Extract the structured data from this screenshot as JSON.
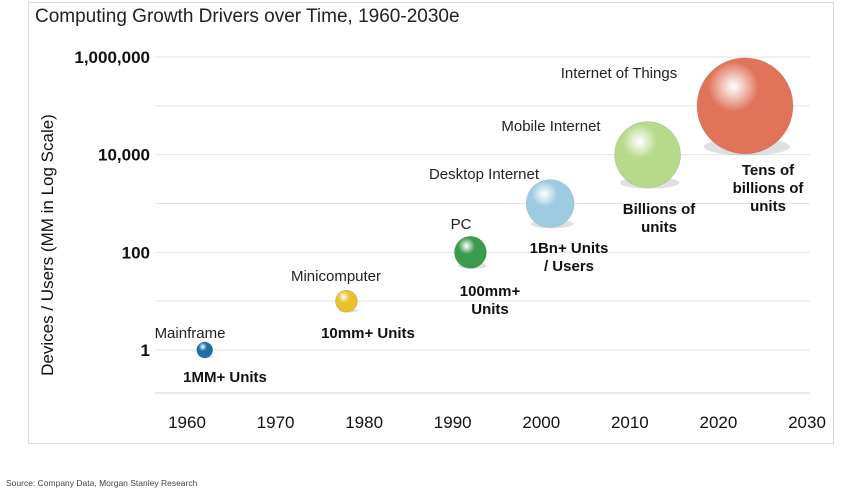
{
  "title": "Computing Growth Drivers over Time, 1960-2030e",
  "source": "Source: Company Data, Morgan Stanley Research",
  "chart_data": {
    "type": "scatter",
    "subtype": "bubble",
    "title": "Computing Growth Drivers over Time, 1960-2030e",
    "ylabel": "Devices / Users (MM in Log Scale)",
    "xlabel": "",
    "y_scale": "log",
    "xlim": [
      1960,
      2030
    ],
    "ylim": [
      0.1,
      1000000
    ],
    "x_ticks": [
      1960,
      1970,
      1980,
      1990,
      2000,
      2010,
      2020,
      2030
    ],
    "y_ticks": [
      {
        "value": 1,
        "label": "1"
      },
      {
        "value": 100,
        "label": "100"
      },
      {
        "value": 10000,
        "label": "10,000"
      },
      {
        "value": 1000000,
        "label": "1,000,000"
      }
    ],
    "grid": "horizontal",
    "legend": "none",
    "points": [
      {
        "era": "Mainframe",
        "x": 1962,
        "y": 1,
        "units_label": [
          "1MM+ Units"
        ],
        "color": "#1f6fa8"
      },
      {
        "era": "Minicomputer",
        "x": 1978,
        "y": 10,
        "units_label": [
          "10mm+ Units"
        ],
        "color": "#e8c22a"
      },
      {
        "era": "PC",
        "x": 1992,
        "y": 100,
        "units_label": [
          "100mm+",
          "Units"
        ],
        "color": "#3a9a4e"
      },
      {
        "era": "Desktop Internet",
        "x": 2001,
        "y": 1000,
        "units_label": [
          "1Bn+ Units",
          "/ Users"
        ],
        "color": "#9fcbe2"
      },
      {
        "era": "Mobile Internet",
        "x": 2012,
        "y": 10000,
        "units_label": [
          "Billions of",
          "units"
        ],
        "color": "#b6d98a"
      },
      {
        "era": "Internet of Things",
        "x": 2023,
        "y": 100000,
        "units_label": [
          "Tens of",
          "billions of",
          "units"
        ],
        "color": "#e0735a"
      }
    ]
  }
}
